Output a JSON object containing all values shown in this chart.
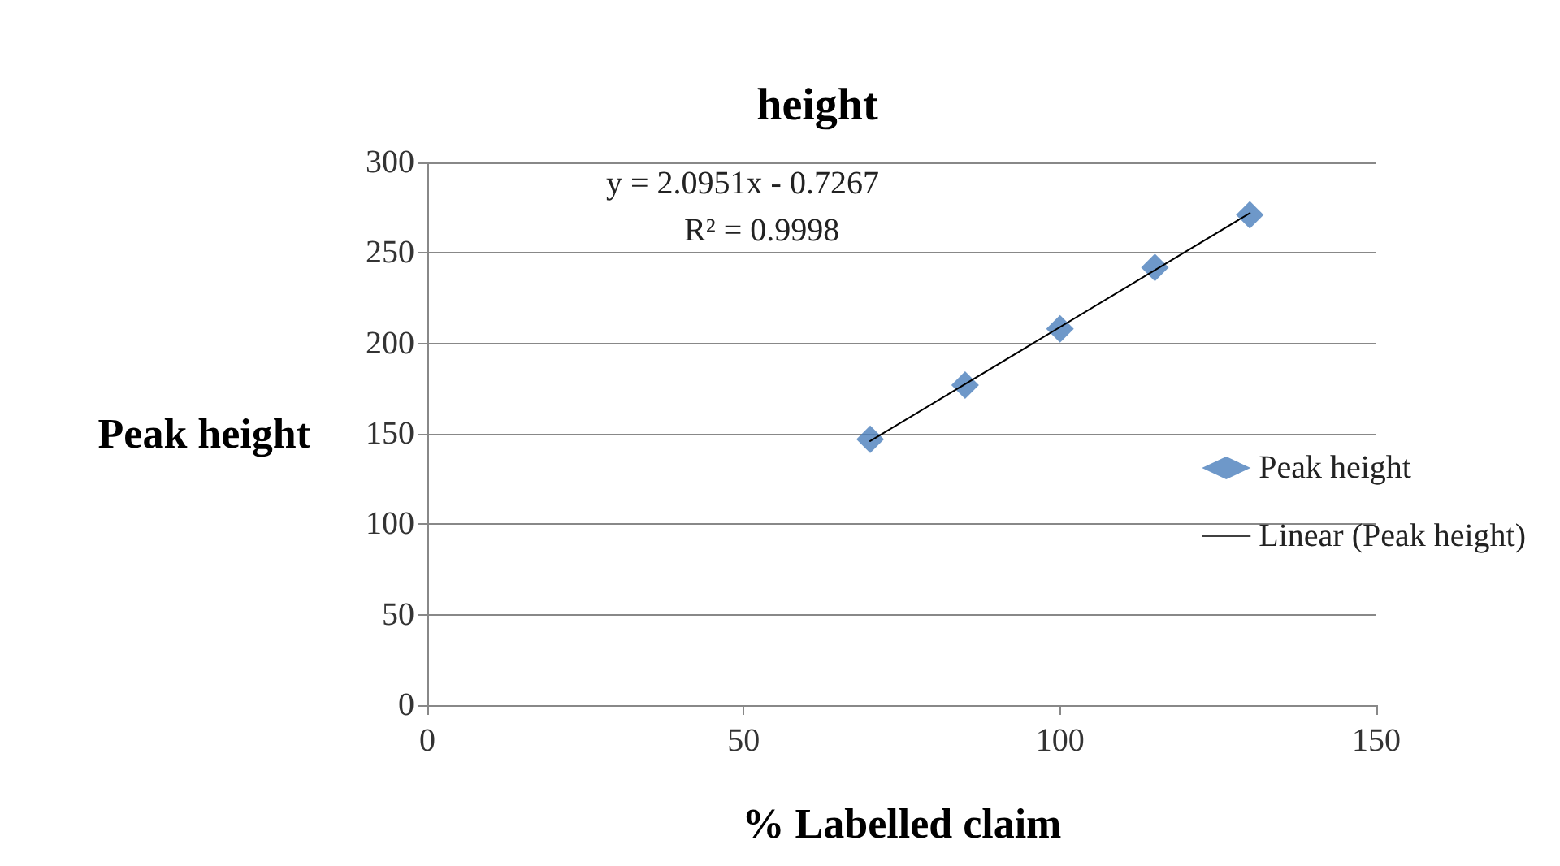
{
  "chart_data": {
    "type": "scatter",
    "title": "height",
    "xlabel": "% Labelled claim",
    "ylabel": "Peak height",
    "xlim": [
      0,
      150
    ],
    "xticks": [
      0,
      50,
      100,
      150
    ],
    "ylim": [
      0,
      300
    ],
    "yticks": [
      0,
      50,
      100,
      150,
      200,
      250,
      300
    ],
    "grid": "y",
    "legend": "right",
    "marker": "diamond",
    "annotations": [
      "y = 2.0951x - 0.7267",
      "R² = 0.9998"
    ],
    "series": [
      {
        "name": "Peak height",
        "color": "#4a7ebb",
        "x": [
          70,
          85,
          100,
          115,
          130
        ],
        "values": [
          147,
          177,
          208,
          242,
          271
        ]
      },
      {
        "name": "Linear (Peak height)",
        "type": "line",
        "color": "#000000",
        "marker": "none",
        "line_style": "solid",
        "x": [
          70,
          130
        ],
        "values": [
          146,
          272
        ]
      }
    ]
  }
}
